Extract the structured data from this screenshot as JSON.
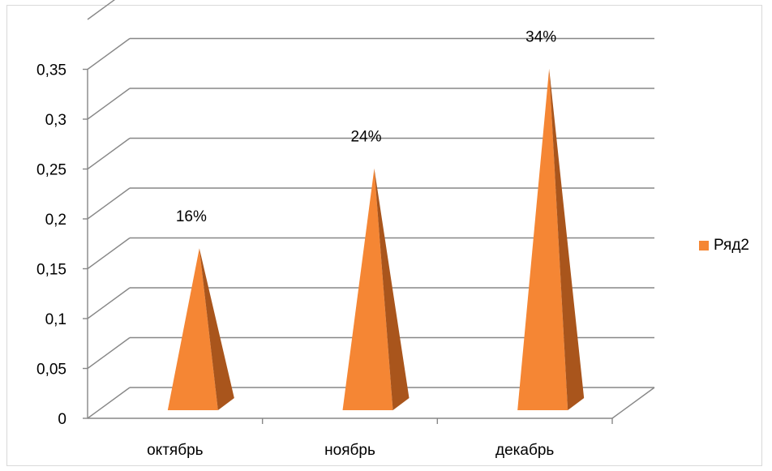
{
  "chart_data": {
    "type": "bar",
    "subtype": "3d-pyramid",
    "categories": [
      "октябрь",
      "ноябрь",
      "декабрь"
    ],
    "series": [
      {
        "name": "Ряд2",
        "values": [
          0.16,
          0.24,
          0.34
        ],
        "labels": [
          "16%",
          "24%",
          "34%"
        ],
        "color": "#F58634",
        "shade_color": "#A9551C"
      }
    ],
    "y_ticks": [
      "0",
      "0,05",
      "0,1",
      "0,15",
      "0,2",
      "0,25",
      "0,3",
      "0,35"
    ],
    "ylim": [
      0,
      0.4
    ],
    "title": "",
    "xlabel": "",
    "ylabel": "",
    "grid": true,
    "legend_position": "right",
    "gridline_color": "#878787"
  }
}
